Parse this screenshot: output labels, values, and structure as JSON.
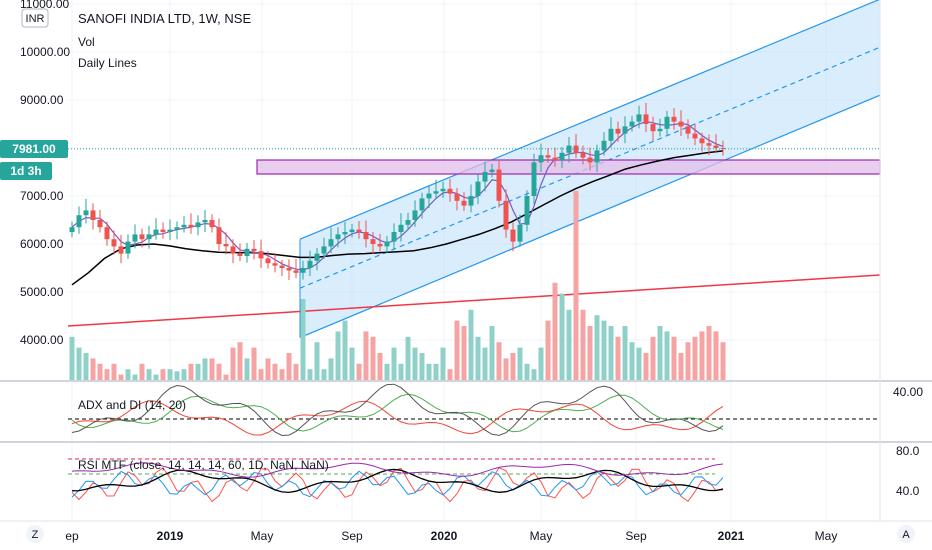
{
  "header": {
    "currency": "INR",
    "title": "SANOFI INDIA LTD, 1W, NSE",
    "indicators": [
      "Vol",
      "Daily Lines"
    ]
  },
  "price_axis": {
    "labels": [
      "11000.00",
      "10000.00",
      "9000.00",
      "8000.00",
      "7000.00",
      "6000.00",
      "5000.00",
      "4000.00"
    ],
    "current_price": "7981.00",
    "countdown": "1d 3h",
    "current_color": "#26a69a"
  },
  "time_axis": {
    "labels": [
      {
        "text": "ep",
        "bold": false
      },
      {
        "text": "2019",
        "bold": true
      },
      {
        "text": "May",
        "bold": false
      },
      {
        "text": "Sep",
        "bold": false
      },
      {
        "text": "2020",
        "bold": true
      },
      {
        "text": "May",
        "bold": false
      },
      {
        "text": "Sep",
        "bold": false
      },
      {
        "text": "2021",
        "bold": true
      },
      {
        "text": "May",
        "bold": false
      }
    ]
  },
  "adx_pane": {
    "title": "ADX and DI (14, 20)",
    "axis_labels": [
      "40.00"
    ]
  },
  "rsi_pane": {
    "title": "RSI MTF (close, 14, 14, 14, 60, 1D, NaN, NaN)",
    "axis_labels": [
      "80.0",
      "40.0"
    ]
  },
  "buttons": {
    "left": "Z",
    "right": "A"
  },
  "colors": {
    "up": "#26a69a",
    "down": "#ef5350",
    "up_volume": "#8fd1c9",
    "down_volume": "#f5a3a3",
    "channel": "#2196f3",
    "support_zone": "#9c27b0",
    "long_trend": "#f23645",
    "ma_long": "#000000",
    "ma_short": "#7e57c2"
  },
  "chart_data": {
    "type": "candlestick",
    "title": "SANOFI INDIA LTD, 1W, NSE",
    "ylim": [
      3400,
      11200
    ],
    "x_ticks": [
      "Sep",
      "2019",
      "May",
      "Sep",
      "2020",
      "May",
      "Sep",
      "2021",
      "May"
    ],
    "close_series": [
      6350,
      6600,
      6700,
      6500,
      6350,
      6100,
      5950,
      5800,
      6050,
      6200,
      6100,
      6200,
      6300,
      6250,
      6300,
      6350,
      6400,
      6350,
      6450,
      6500,
      6350,
      6000,
      5950,
      5800,
      5750,
      5900,
      5850,
      5700,
      5600,
      5550,
      5500,
      5450,
      5400,
      5500,
      5650,
      5800,
      5950,
      6100,
      6200,
      6250,
      6300,
      6250,
      6100,
      6000,
      5950,
      6050,
      6250,
      6400,
      6500,
      6700,
      6950,
      7050,
      7100,
      7150,
      7050,
      6900,
      6800,
      7000,
      7300,
      7500,
      7550,
      6900,
      6300,
      6050,
      6400,
      7000,
      7700,
      7850,
      7800,
      7750,
      7900,
      8050,
      7900,
      7800,
      7700,
      7950,
      8150,
      8400,
      8300,
      8450,
      8550,
      8700,
      8500,
      8350,
      8400,
      8650,
      8550,
      8450,
      8300,
      8200,
      8100,
      8050,
      8000,
      7981
    ],
    "ma_long_series": [
      5150,
      5400,
      5700,
      5900,
      5980,
      6000,
      5960,
      5900,
      5860,
      5830,
      5820,
      5820,
      5800,
      5760,
      5720,
      5720,
      5760,
      5790,
      5800,
      5820,
      5840,
      5860,
      5920,
      6000,
      6100,
      6200,
      6320,
      6460,
      6640,
      6820,
      7000,
      7160,
      7300,
      7430,
      7560,
      7650,
      7730,
      7800,
      7850,
      7900,
      7940
    ],
    "volume_series": [
      3800,
      3700,
      3650,
      3600,
      3550,
      3500,
      3550,
      3450,
      3500,
      3450,
      3550,
      3500,
      3450,
      3500,
      3500,
      3480,
      3500,
      3550,
      3550,
      3600,
      3600,
      3550,
      3450,
      3700,
      3750,
      3600,
      3700,
      3500,
      3600,
      3550,
      3500,
      3650,
      3550,
      4150,
      3500,
      3750,
      3500,
      3600,
      3850,
      3950,
      3700,
      3550,
      3850,
      3800,
      3650,
      3550,
      3700,
      3550,
      3800,
      3700,
      3650,
      3550,
      3550,
      3700,
      3500,
      3950,
      3900,
      4050,
      3800,
      3700,
      3900,
      3750,
      3600,
      3650,
      3700,
      3550,
      3500,
      3700,
      3950,
      4300,
      4200,
      4050,
      5150,
      4050,
      3900,
      4000,
      3950,
      3900,
      3800,
      3900,
      3750,
      3700,
      3650,
      3800,
      3900,
      3850,
      3800,
      3650,
      3750,
      3800,
      3850,
      3900,
      3850,
      3750
    ]
  }
}
